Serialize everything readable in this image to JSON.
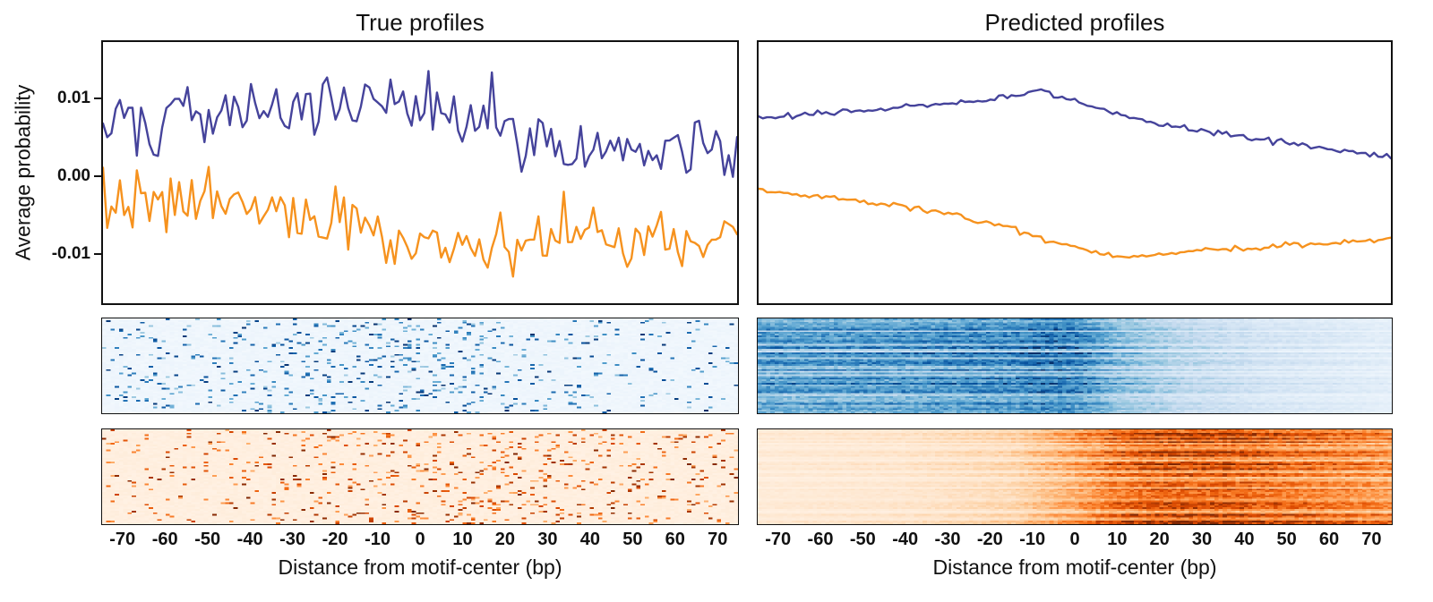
{
  "figure": {
    "columns": [
      {
        "title": "True profiles"
      },
      {
        "title": "Predicted profiles"
      }
    ],
    "ylabel": "Average probability",
    "xlabel": "Distance from motif-center (bp)"
  },
  "colormaps": {
    "blues": [
      "#f7fbff",
      "#deebf7",
      "#c6dbef",
      "#9ecae1",
      "#6baed6",
      "#4292c6",
      "#2171b5",
      "#08519c",
      "#08306b"
    ],
    "oranges": [
      "#fff5eb",
      "#fee6ce",
      "#fdd0a2",
      "#fdae6b",
      "#fd8d3c",
      "#f16913",
      "#d94801",
      "#a63603",
      "#7f2704"
    ]
  },
  "chart_data": [
    {
      "type": "line",
      "title": "True profiles",
      "xlabel": "Distance from motif-center (bp)",
      "ylabel": "Average probability",
      "xlim": [
        -75,
        75
      ],
      "ylim": [
        -0.0165,
        0.0175
      ],
      "xticks": [
        -70,
        -60,
        -50,
        -40,
        -30,
        -20,
        -10,
        0,
        10,
        20,
        30,
        40,
        50,
        60,
        70
      ],
      "yticks": [
        "0.01",
        "0.00",
        "-0.01"
      ],
      "grid": false,
      "legend": "none",
      "series": [
        {
          "name": "positive-strand true average profile",
          "color": "#45439B",
          "keypoints_x": [
            -75,
            -60,
            -45,
            -30,
            -20,
            -10,
            0,
            10,
            20,
            30,
            40,
            50,
            60,
            75
          ],
          "keypoints_y": [
            0.0065,
            0.0075,
            0.0085,
            0.0085,
            0.0095,
            0.0095,
            0.009,
            0.0085,
            0.006,
            0.005,
            0.0045,
            0.004,
            0.0035,
            0.003
          ],
          "noise_sd": 0.0021,
          "seed": 101
        },
        {
          "name": "negative-strand true average profile",
          "color": "#F6921E",
          "keypoints_x": [
            -75,
            -60,
            -45,
            -30,
            -20,
            -10,
            0,
            10,
            20,
            30,
            40,
            50,
            60,
            75
          ],
          "keypoints_y": [
            -0.003,
            -0.0035,
            -0.004,
            -0.0045,
            -0.005,
            -0.006,
            -0.0085,
            -0.009,
            -0.009,
            -0.0085,
            -0.008,
            -0.0085,
            -0.008,
            -0.008
          ],
          "noise_sd": 0.0021,
          "seed": 202
        }
      ],
      "heatmaps": [
        {
          "name": "true positive-strand per-region heatmap",
          "style": "speckle",
          "colormap": "blues",
          "rows": 56,
          "cols": 150,
          "background": 0.04,
          "density_x": [
            -75,
            -40,
            -10,
            10,
            30,
            75
          ],
          "density_v": [
            0.055,
            0.075,
            0.095,
            0.085,
            0.055,
            0.04
          ],
          "intensity_min": 0.35,
          "intensity_max": 1.0,
          "seed": 11
        },
        {
          "name": "true negative-strand per-region heatmap",
          "style": "speckle",
          "colormap": "oranges",
          "rows": 56,
          "cols": 150,
          "background": 0.05,
          "density_x": [
            -75,
            -30,
            0,
            20,
            40,
            75
          ],
          "density_v": [
            0.05,
            0.06,
            0.09,
            0.1,
            0.085,
            0.06
          ],
          "intensity_min": 0.35,
          "intensity_max": 1.0,
          "seed": 12
        }
      ]
    },
    {
      "type": "line",
      "title": "Predicted profiles",
      "xlabel": "Distance from motif-center (bp)",
      "ylabel": "Average probability",
      "xlim": [
        -75,
        75
      ],
      "ylim": [
        -0.0165,
        0.0175
      ],
      "xticks": [
        -70,
        -60,
        -50,
        -40,
        -30,
        -20,
        -10,
        0,
        10,
        20,
        30,
        40,
        50,
        60,
        70
      ],
      "yticks": [],
      "grid": false,
      "legend": "none",
      "series": [
        {
          "name": "positive-strand predicted average profile",
          "color": "#45439B",
          "keypoints_x": [
            -75,
            -60,
            -50,
            -40,
            -30,
            -20,
            -12,
            -8,
            -4,
            0,
            5,
            10,
            20,
            30,
            40,
            50,
            60,
            75
          ],
          "keypoints_y": [
            0.0078,
            0.0082,
            0.0086,
            0.009,
            0.0095,
            0.01,
            0.0108,
            0.0113,
            0.0105,
            0.0098,
            0.009,
            0.0082,
            0.0068,
            0.006,
            0.0052,
            0.0045,
            0.0036,
            0.0026
          ],
          "noise_sd": 0.00018,
          "seed": 303
        },
        {
          "name": "negative-strand predicted average profile",
          "color": "#F6921E",
          "keypoints_x": [
            -75,
            -60,
            -50,
            -40,
            -30,
            -20,
            -10,
            -5,
            0,
            5,
            10,
            14,
            20,
            30,
            40,
            50,
            60,
            75
          ],
          "keypoints_y": [
            -0.0018,
            -0.0026,
            -0.0033,
            -0.004,
            -0.005,
            -0.006,
            -0.0075,
            -0.0085,
            -0.0093,
            -0.0099,
            -0.0104,
            -0.0106,
            -0.01,
            -0.0096,
            -0.0094,
            -0.009,
            -0.0087,
            -0.0082
          ],
          "noise_sd": 0.00018,
          "seed": 404
        }
      ],
      "heatmaps": [
        {
          "name": "predicted positive-strand per-region heatmap",
          "style": "streaks",
          "colormap": "blues",
          "rows": 56,
          "cols": 150,
          "col_x": [
            -75,
            -40,
            -15,
            -5,
            0,
            10,
            25,
            45,
            75
          ],
          "col_v": [
            0.78,
            0.8,
            0.88,
            0.97,
            0.92,
            0.6,
            0.38,
            0.24,
            0.14
          ],
          "row_min": 0.3,
          "row_max": 1.0,
          "noise": 0.45,
          "seed": 13
        },
        {
          "name": "predicted negative-strand per-region heatmap",
          "style": "streaks",
          "colormap": "oranges",
          "rows": 56,
          "cols": 150,
          "col_x": [
            -75,
            -40,
            -15,
            0,
            10,
            20,
            35,
            50,
            65,
            75
          ],
          "col_v": [
            0.12,
            0.17,
            0.28,
            0.55,
            0.8,
            0.93,
            0.95,
            0.82,
            0.72,
            0.66
          ],
          "row_min": 0.35,
          "row_max": 1.0,
          "noise": 0.45,
          "seed": 14
        }
      ]
    }
  ]
}
